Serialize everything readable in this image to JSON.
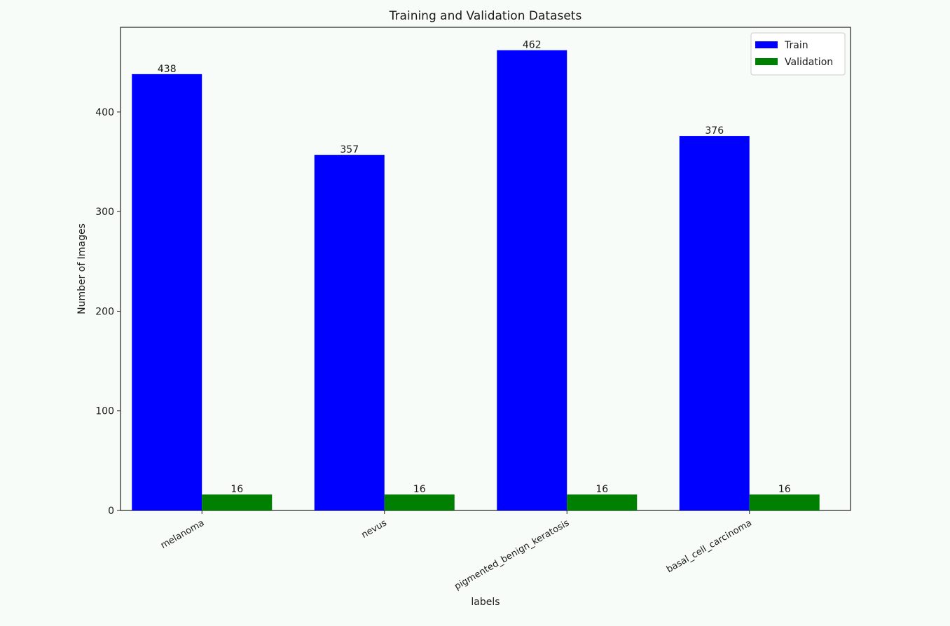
{
  "chart_data": {
    "type": "bar",
    "title": "Training and Validation Datasets",
    "xlabel": "labels",
    "ylabel": "Number of Images",
    "categories": [
      "melanoma",
      "nevus",
      "pigmented_benign_keratosis",
      "basal_cell_carcinoma"
    ],
    "series": [
      {
        "name": "Train",
        "values": [
          438,
          357,
          462,
          376
        ],
        "color": "#0000ff"
      },
      {
        "name": "Validation",
        "values": [
          16,
          16,
          16,
          16
        ],
        "color": "#008000"
      }
    ],
    "yticks": [
      0,
      100,
      200,
      300,
      400
    ],
    "ylim": [
      0,
      485
    ],
    "legend_position": "top-right",
    "grid": false
  }
}
